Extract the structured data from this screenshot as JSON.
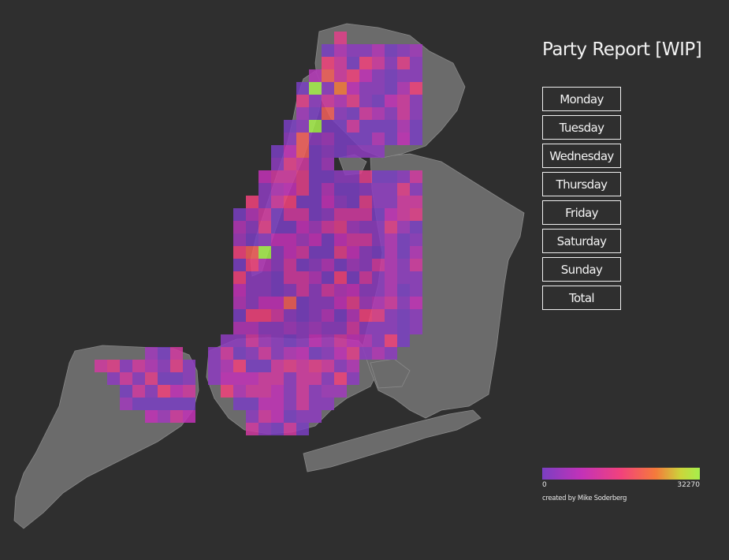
{
  "header": {
    "title": "Party Report [WIP]"
  },
  "menu": {
    "items": [
      {
        "label": "Monday"
      },
      {
        "label": "Tuesday"
      },
      {
        "label": "Wednesday"
      },
      {
        "label": "Thursday"
      },
      {
        "label": "Friday"
      },
      {
        "label": "Saturday"
      },
      {
        "label": "Sunday"
      },
      {
        "label": "Total"
      }
    ]
  },
  "legend": {
    "min_label": "0",
    "max_label": "32270",
    "min": 0,
    "max": 32270,
    "colors": [
      "#7a3fc2",
      "#c332b8",
      "#f2427c",
      "#f47a3b",
      "#cbd53b",
      "#a6ef4c"
    ]
  },
  "footer": {
    "credit": "created by Mike Soderberg"
  },
  "map": {
    "background": "#2f2f2f",
    "land_color": "#6b6b6b",
    "border_color": "#8a8a8a"
  }
}
